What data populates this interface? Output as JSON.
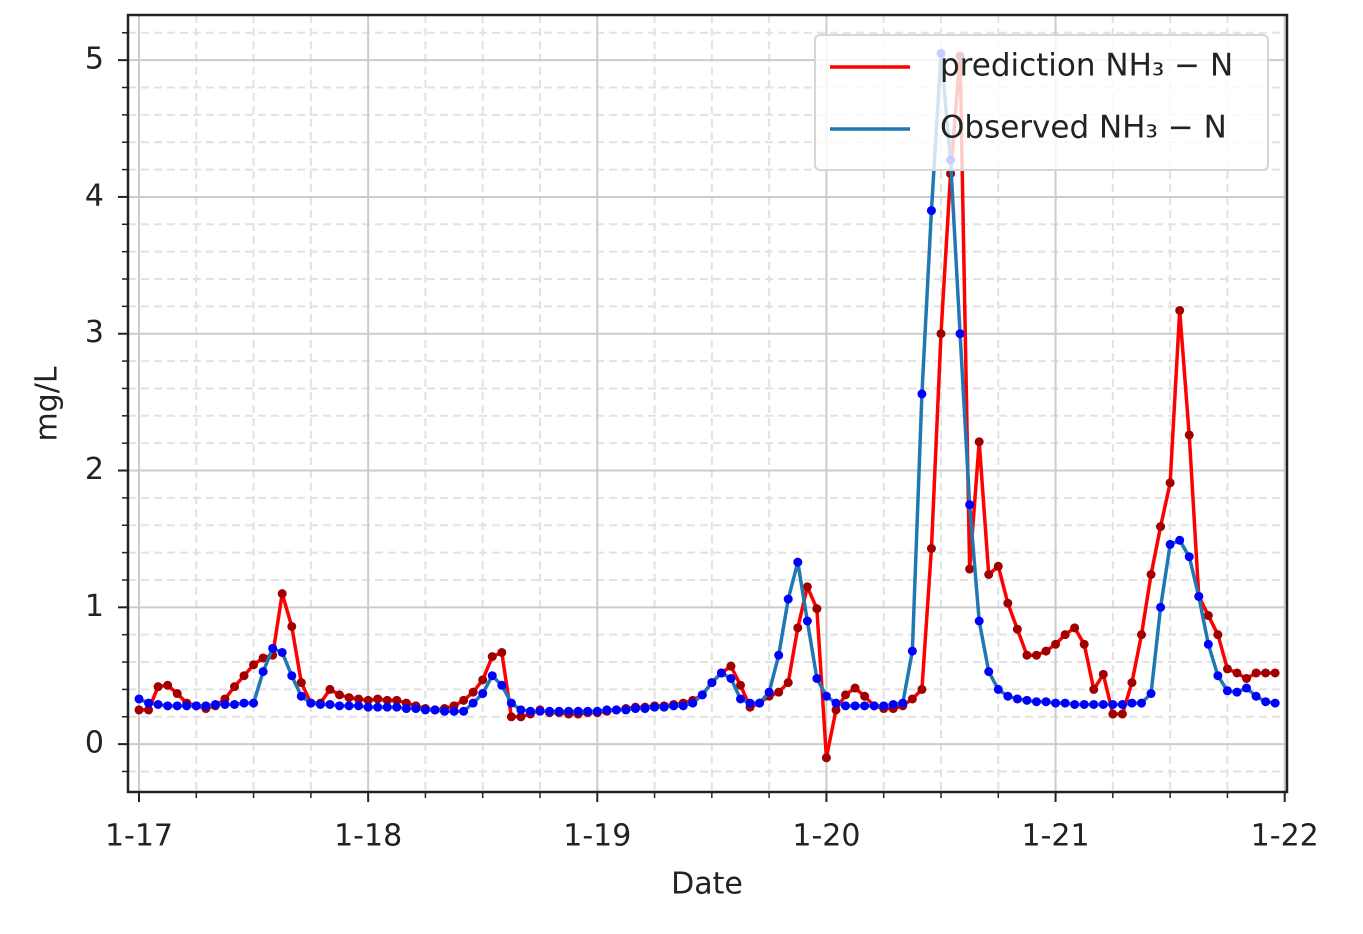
{
  "chart_data": {
    "type": "line",
    "xlabel": "Date",
    "ylabel": "mg/L",
    "x": [
      17,
      17.0417,
      17.0833,
      17.125,
      17.1667,
      17.2083,
      17.25,
      17.2917,
      17.3333,
      17.375,
      17.4167,
      17.4583,
      17.5,
      17.5417,
      17.5833,
      17.625,
      17.6667,
      17.7083,
      17.75,
      17.7917,
      17.8333,
      17.875,
      17.9167,
      17.9583,
      18,
      18.0417,
      18.0833,
      18.125,
      18.1667,
      18.2083,
      18.25,
      18.2917,
      18.3333,
      18.375,
      18.4167,
      18.4583,
      18.5,
      18.5417,
      18.5833,
      18.625,
      18.6667,
      18.7083,
      18.75,
      18.7917,
      18.8333,
      18.875,
      18.9167,
      18.9583,
      19,
      19.0417,
      19.0833,
      19.125,
      19.1667,
      19.2083,
      19.25,
      19.2917,
      19.3333,
      19.375,
      19.4167,
      19.4583,
      19.5,
      19.5417,
      19.5833,
      19.625,
      19.6667,
      19.7083,
      19.75,
      19.7917,
      19.8333,
      19.875,
      19.9167,
      19.9583,
      20,
      20.0417,
      20.0833,
      20.125,
      20.1667,
      20.2083,
      20.25,
      20.2917,
      20.3333,
      20.375,
      20.4167,
      20.4583,
      20.5,
      20.5417,
      20.5833,
      20.625,
      20.6667,
      20.7083,
      20.75,
      20.7917,
      20.8333,
      20.875,
      20.9167,
      20.9583,
      21,
      21.0417,
      21.0833,
      21.125,
      21.1667,
      21.2083,
      21.25,
      21.2917,
      21.3333,
      21.375,
      21.4167,
      21.4583,
      21.5,
      21.5417,
      21.5833,
      21.625,
      21.6667,
      21.7083,
      21.75,
      21.7917,
      21.8333,
      21.875,
      21.9167,
      21.9583
    ],
    "series": [
      {
        "name": "prediction NH₃ − N",
        "color": "#ff0000",
        "marker_color": "#a00000",
        "values": [
          0.25,
          0.25,
          0.42,
          0.43,
          0.37,
          0.3,
          0.28,
          0.26,
          0.28,
          0.33,
          0.42,
          0.5,
          0.58,
          0.63,
          0.65,
          1.1,
          0.86,
          0.45,
          0.3,
          0.3,
          0.4,
          0.36,
          0.34,
          0.33,
          0.32,
          0.33,
          0.32,
          0.32,
          0.3,
          0.28,
          0.26,
          0.25,
          0.26,
          0.28,
          0.32,
          0.38,
          0.47,
          0.64,
          0.67,
          0.2,
          0.2,
          0.22,
          0.25,
          0.23,
          0.23,
          0.22,
          0.22,
          0.23,
          0.23,
          0.24,
          0.25,
          0.26,
          0.27,
          0.27,
          0.28,
          0.28,
          0.29,
          0.3,
          0.32,
          0.36,
          0.45,
          0.52,
          0.57,
          0.43,
          0.27,
          0.3,
          0.35,
          0.38,
          0.45,
          0.85,
          1.15,
          0.99,
          -0.1,
          0.25,
          0.36,
          0.41,
          0.35,
          0.28,
          0.26,
          0.26,
          0.28,
          0.33,
          0.4,
          1.43,
          3.0,
          4.17,
          5.03,
          1.28,
          2.21,
          1.24,
          1.3,
          1.03,
          0.84,
          0.65,
          0.65,
          0.68,
          0.73,
          0.8,
          0.85,
          0.73,
          0.4,
          0.51,
          0.22,
          0.22,
          0.45,
          0.8,
          1.24,
          1.59,
          1.91,
          3.17,
          2.26,
          1.08,
          0.94,
          0.8,
          0.55,
          0.52,
          0.48,
          0.52,
          0.52,
          0.52
        ]
      },
      {
        "name": "Observed NH₃ − N",
        "color": "#1f77b4",
        "marker_color": "#0000ff",
        "values": [
          0.33,
          0.3,
          0.29,
          0.28,
          0.28,
          0.28,
          0.28,
          0.28,
          0.29,
          0.29,
          0.29,
          0.3,
          0.3,
          0.53,
          0.7,
          0.67,
          0.5,
          0.35,
          0.3,
          0.29,
          0.29,
          0.28,
          0.28,
          0.28,
          0.27,
          0.27,
          0.27,
          0.27,
          0.26,
          0.26,
          0.25,
          0.25,
          0.24,
          0.24,
          0.24,
          0.3,
          0.37,
          0.5,
          0.43,
          0.3,
          0.25,
          0.24,
          0.24,
          0.24,
          0.24,
          0.24,
          0.24,
          0.24,
          0.24,
          0.25,
          0.25,
          0.25,
          0.26,
          0.26,
          0.27,
          0.27,
          0.28,
          0.28,
          0.3,
          0.36,
          0.45,
          0.52,
          0.48,
          0.33,
          0.3,
          0.3,
          0.38,
          0.65,
          1.06,
          1.33,
          0.9,
          0.48,
          0.35,
          0.3,
          0.28,
          0.28,
          0.28,
          0.28,
          0.28,
          0.29,
          0.3,
          0.68,
          2.56,
          3.9,
          5.05,
          4.27,
          3.0,
          1.75,
          0.9,
          0.53,
          0.4,
          0.35,
          0.33,
          0.32,
          0.31,
          0.31,
          0.3,
          0.3,
          0.29,
          0.29,
          0.29,
          0.29,
          0.29,
          0.29,
          0.3,
          0.3,
          0.37,
          1.0,
          1.46,
          1.49,
          1.37,
          1.08,
          0.73,
          0.5,
          0.39,
          0.38,
          0.41,
          0.35,
          0.31,
          0.3
        ]
      }
    ],
    "xlim": [
      16.952,
      22.01
    ],
    "ylim": [
      -0.35,
      5.33
    ],
    "xticks": [
      {
        "value": 17,
        "label": "1-17"
      },
      {
        "value": 18,
        "label": "1-18"
      },
      {
        "value": 19,
        "label": "1-19"
      },
      {
        "value": 20,
        "label": "1-20"
      },
      {
        "value": 21,
        "label": "1-21"
      },
      {
        "value": 22,
        "label": "1-22"
      }
    ],
    "yticks": [
      0,
      1,
      2,
      3,
      4,
      5
    ],
    "xminorticks": [
      17.25,
      17.5,
      17.75,
      18.25,
      18.5,
      18.75,
      19.25,
      19.5,
      19.75,
      20.25,
      20.5,
      20.75,
      21.25,
      21.5,
      21.75
    ],
    "yminorticks": [
      -0.2,
      0.2,
      0.4,
      0.6,
      0.8,
      1.2,
      1.4,
      1.6,
      1.8,
      2.2,
      2.4,
      2.6,
      2.8,
      3.2,
      3.4,
      3.6,
      3.8,
      4.2,
      4.4,
      4.6,
      4.8,
      5.2
    ],
    "grid": true,
    "legend": "upper right"
  }
}
